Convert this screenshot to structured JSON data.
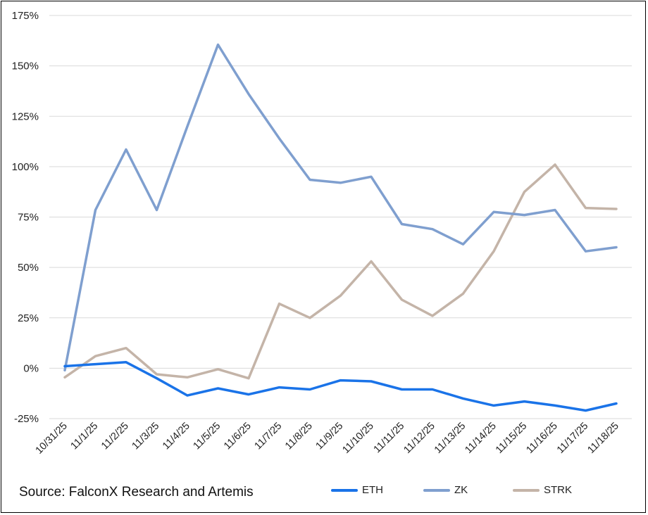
{
  "source_text": "Source: FalconX Research and Artemis",
  "chart_data": {
    "type": "line",
    "title": "",
    "xlabel": "",
    "ylabel": "",
    "categories": [
      "10/31/25",
      "11/1/25",
      "11/2/25",
      "11/3/25",
      "11/4/25",
      "11/5/25",
      "11/6/25",
      "11/7/25",
      "11/8/25",
      "11/9/25",
      "11/10/25",
      "11/11/25",
      "11/12/25",
      "11/13/25",
      "11/14/25",
      "11/15/25",
      "11/16/25",
      "11/17/25",
      "11/18/25"
    ],
    "ylim": [
      -25,
      175
    ],
    "yticks": [
      -25,
      0,
      25,
      50,
      75,
      100,
      125,
      150,
      175
    ],
    "ytick_labels": [
      "-25%",
      "0%",
      "25%",
      "50%",
      "75%",
      "100%",
      "125%",
      "150%",
      "175%"
    ],
    "grid": true,
    "legend_position": "bottom-right",
    "series": [
      {
        "name": "ETH",
        "color": "#1a73e8",
        "values": [
          1,
          2,
          3,
          -5,
          -13.5,
          -10,
          -13,
          -9.5,
          -10.5,
          -6,
          -6.5,
          -10.5,
          -10.5,
          -15,
          -18.5,
          -16.5,
          -18.5,
          -21,
          -17.5
        ]
      },
      {
        "name": "ZK",
        "color": "#7f9fcf",
        "values": [
          -1,
          78.5,
          108.5,
          78.5,
          120,
          160.5,
          136,
          114,
          93.5,
          92,
          95,
          71.5,
          69,
          61.5,
          77.5,
          76,
          78.5,
          58,
          60
        ]
      },
      {
        "name": "STRK",
        "color": "#c4b4a8",
        "values": [
          -4.5,
          6,
          10,
          -3,
          -4.5,
          -0.5,
          -5,
          32,
          25,
          36,
          53,
          34,
          26,
          37,
          58,
          87.5,
          101,
          79.5,
          79
        ]
      }
    ]
  }
}
